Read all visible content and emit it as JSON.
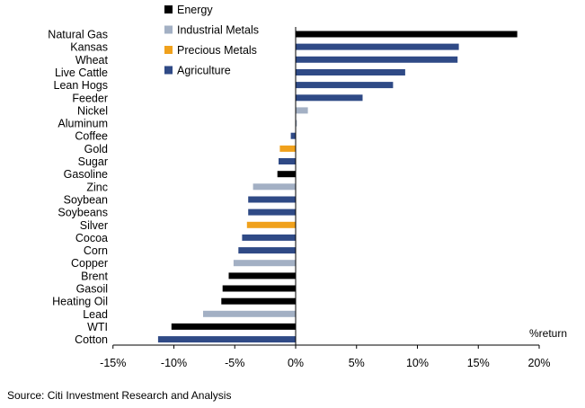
{
  "chart_data": {
    "type": "bar",
    "orientation": "horizontal",
    "title": "",
    "xlabel": "%return",
    "ylabel": "",
    "xlim": [
      -15,
      20
    ],
    "xticks": [
      -15,
      -10,
      -5,
      0,
      5,
      10,
      15,
      20
    ],
    "tick_labels": [
      "-15%",
      "-10%",
      "-5%",
      "0%",
      "5%",
      "10%",
      "15%",
      "20%"
    ],
    "grid": false,
    "legend_position": "top-left",
    "legend": [
      {
        "group": "energy",
        "label": "Energy",
        "color": "#000000"
      },
      {
        "group": "industrial",
        "label": "Industrial Metals",
        "color": "#a3b0c4"
      },
      {
        "group": "precious",
        "label": "Precious Metals",
        "color": "#f0a11c"
      },
      {
        "group": "agriculture",
        "label": "Agriculture",
        "color": "#2f4a86"
      }
    ],
    "bars": [
      {
        "label": "Natural Gas",
        "value": 18.2,
        "group": "energy"
      },
      {
        "label": "Kansas",
        "value": 13.4,
        "group": "agriculture"
      },
      {
        "label": "Wheat",
        "value": 13.3,
        "group": "agriculture"
      },
      {
        "label": "Live Cattle",
        "value": 9.0,
        "group": "agriculture"
      },
      {
        "label": "Lean Hogs",
        "value": 8.0,
        "group": "agriculture"
      },
      {
        "label": "Feeder",
        "value": 5.5,
        "group": "agriculture"
      },
      {
        "label": "Nickel",
        "value": 1.0,
        "group": "industrial"
      },
      {
        "label": "Aluminum",
        "value": 0.1,
        "group": "industrial"
      },
      {
        "label": "Coffee",
        "value": -0.4,
        "group": "agriculture"
      },
      {
        "label": "Gold",
        "value": -1.3,
        "group": "precious"
      },
      {
        "label": "Sugar",
        "value": -1.4,
        "group": "agriculture"
      },
      {
        "label": "Gasoline",
        "value": -1.5,
        "group": "energy"
      },
      {
        "label": "Zinc",
        "value": -3.5,
        "group": "industrial"
      },
      {
        "label": "Soybean",
        "value": -3.9,
        "group": "agriculture"
      },
      {
        "label": "Soybeans",
        "value": -3.9,
        "group": "agriculture"
      },
      {
        "label": "Silver",
        "value": -4.0,
        "group": "precious"
      },
      {
        "label": "Cocoa",
        "value": -4.4,
        "group": "agriculture"
      },
      {
        "label": "Corn",
        "value": -4.7,
        "group": "agriculture"
      },
      {
        "label": "Copper",
        "value": -5.1,
        "group": "industrial"
      },
      {
        "label": "Brent",
        "value": -5.5,
        "group": "energy"
      },
      {
        "label": "Gasoil",
        "value": -6.0,
        "group": "energy"
      },
      {
        "label": "Heating Oil",
        "value": -6.1,
        "group": "energy"
      },
      {
        "label": "Lead",
        "value": -7.6,
        "group": "industrial"
      },
      {
        "label": "WTI",
        "value": -10.2,
        "group": "energy"
      },
      {
        "label": "Cotton",
        "value": -11.3,
        "group": "agriculture"
      }
    ]
  },
  "source_text": "Source: Citi Investment Research and Analysis"
}
